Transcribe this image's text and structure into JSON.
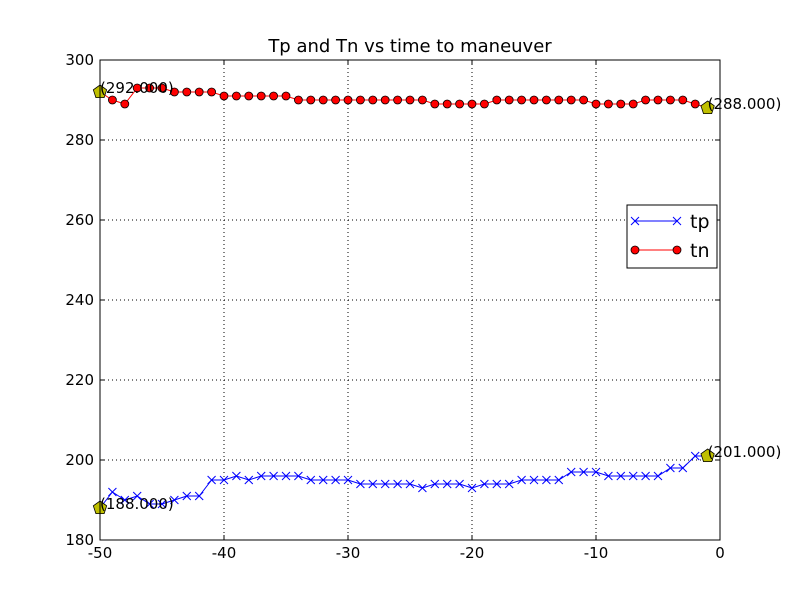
{
  "chart_data": {
    "type": "line",
    "title": "Tp and Tn vs time to maneuver",
    "xlabel": "",
    "ylabel": "",
    "xlim": [
      -50,
      0
    ],
    "ylim": [
      180,
      300
    ],
    "xticks": [
      "-50",
      "-40",
      "-30",
      "-20",
      "-10",
      "0"
    ],
    "yticks": [
      "180",
      "200",
      "220",
      "240",
      "260",
      "280",
      "300"
    ],
    "grid": true,
    "legend_position": "center-right",
    "series": [
      {
        "name": "tp",
        "color": "#0000ff",
        "marker": "x",
        "x": [
          -50,
          -49,
          -48,
          -47,
          -46,
          -45,
          -44,
          -43,
          -42,
          -41,
          -40,
          -39,
          -38,
          -37,
          -36,
          -35,
          -34,
          -33,
          -32,
          -31,
          -30,
          -29,
          -28,
          -27,
          -26,
          -25,
          -24,
          -23,
          -22,
          -21,
          -20,
          -19,
          -18,
          -17,
          -16,
          -15,
          -14,
          -13,
          -12,
          -11,
          -10,
          -9,
          -8,
          -7,
          -6,
          -5,
          -4,
          -3,
          -2,
          -1
        ],
        "y": [
          188,
          192,
          190,
          191,
          189,
          189,
          190,
          191,
          191,
          195,
          195,
          196,
          195,
          196,
          196,
          196,
          196,
          195,
          195,
          195,
          195,
          194,
          194,
          194,
          194,
          194,
          193,
          194,
          194,
          194,
          193,
          194,
          194,
          194,
          195,
          195,
          195,
          195,
          197,
          197,
          197,
          196,
          196,
          196,
          196,
          196,
          198,
          198,
          201,
          201
        ]
      },
      {
        "name": "tn",
        "color": "#ff0000",
        "marker": "o",
        "x": [
          -50,
          -49,
          -48,
          -47,
          -46,
          -45,
          -44,
          -43,
          -42,
          -41,
          -40,
          -39,
          -38,
          -37,
          -36,
          -35,
          -34,
          -33,
          -32,
          -31,
          -30,
          -29,
          -28,
          -27,
          -26,
          -25,
          -24,
          -23,
          -22,
          -21,
          -20,
          -19,
          -18,
          -17,
          -16,
          -15,
          -14,
          -13,
          -12,
          -11,
          -10,
          -9,
          -8,
          -7,
          -6,
          -5,
          -4,
          -3,
          -2,
          -1
        ],
        "y": [
          292,
          290,
          289,
          293,
          293,
          293,
          292,
          292,
          292,
          292,
          291,
          291,
          291,
          291,
          291,
          291,
          290,
          290,
          290,
          290,
          290,
          290,
          290,
          290,
          290,
          290,
          290,
          289,
          289,
          289,
          289,
          289,
          290,
          290,
          290,
          290,
          290,
          290,
          290,
          290,
          289,
          289,
          289,
          289,
          290,
          290,
          290,
          290,
          289,
          288
        ]
      }
    ],
    "annotations": [
      {
        "x": -50,
        "y": 292,
        "label": "(292.000)"
      },
      {
        "x": -1,
        "y": 288,
        "label": "(288.000)"
      },
      {
        "x": -50,
        "y": 188,
        "label": "(188.000)"
      },
      {
        "x": -1,
        "y": 201,
        "label": "(201.000)"
      }
    ],
    "annotation_marker_color": "#bfbf00"
  }
}
